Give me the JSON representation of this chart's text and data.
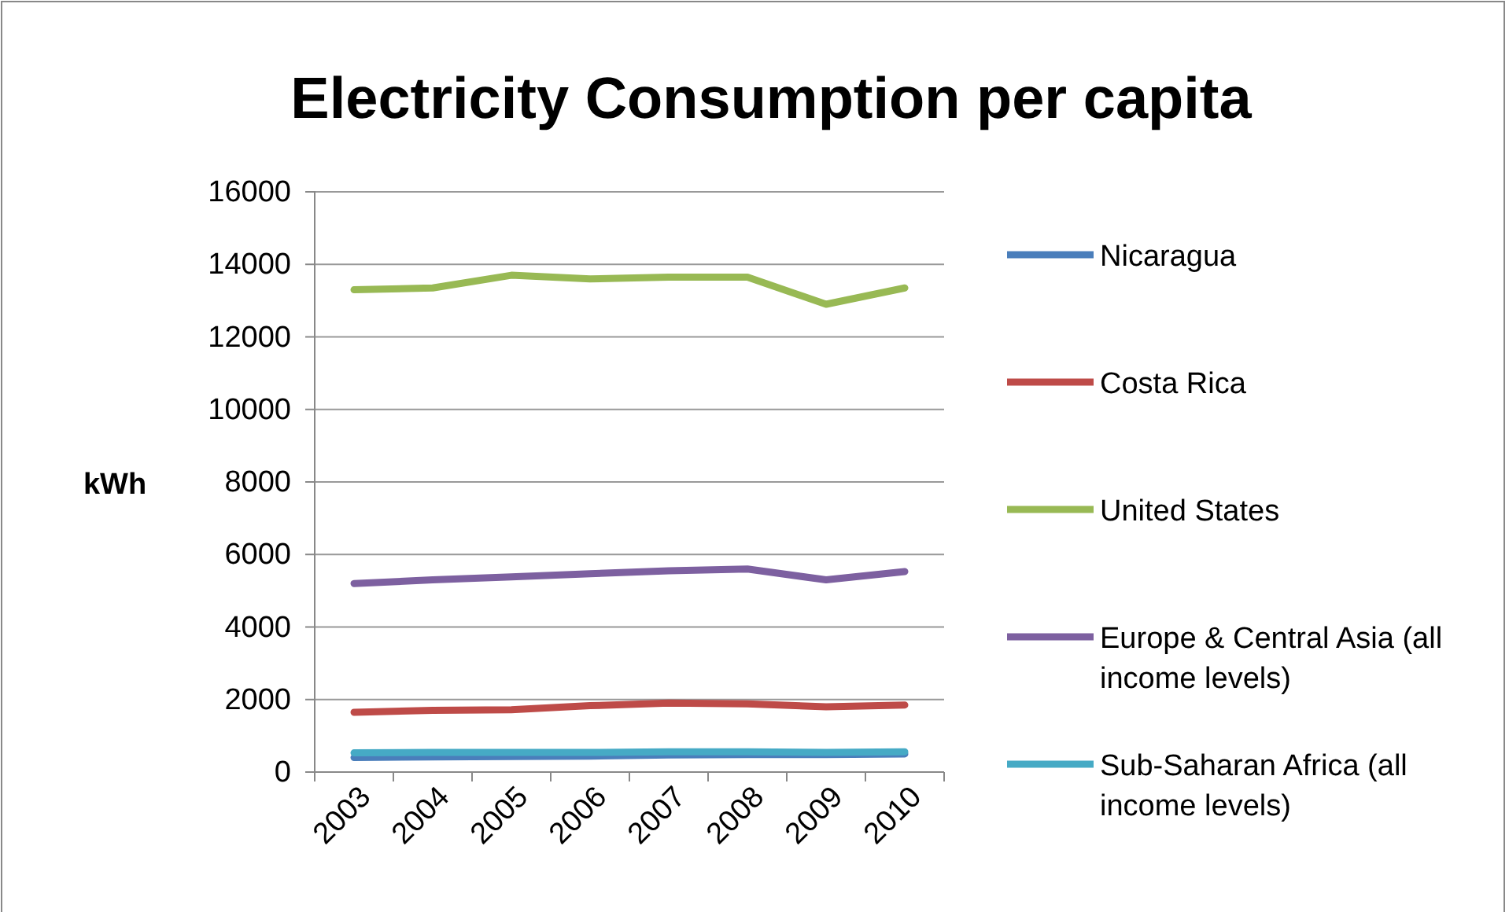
{
  "chart_data": {
    "type": "line",
    "title": "Electricity Consumption per capita",
    "ylabel": "kWh",
    "categories": [
      "2003",
      "2004",
      "2005",
      "2006",
      "2007",
      "2008",
      "2009",
      "2010"
    ],
    "ylim": [
      0,
      16000
    ],
    "yticks": [
      0,
      2000,
      4000,
      6000,
      8000,
      10000,
      12000,
      14000,
      16000
    ],
    "grid": "y",
    "legend": "right",
    "marker": "none",
    "series": [
      {
        "name": "Nicaragua",
        "color": "#4a7ebb",
        "values": [
          400,
          420,
          430,
          440,
          470,
          480,
          480,
          500
        ]
      },
      {
        "name": "Costa Rica",
        "color": "#be4b48",
        "values": [
          1650,
          1700,
          1720,
          1830,
          1900,
          1880,
          1800,
          1850
        ]
      },
      {
        "name": "United States",
        "color": "#98b954",
        "values": [
          13300,
          13350,
          13700,
          13600,
          13650,
          13650,
          12900,
          13350
        ]
      },
      {
        "name": "Europe & Central Asia (all income levels)",
        "color": "#7d60a0",
        "values": [
          5200,
          5300,
          5380,
          5470,
          5550,
          5600,
          5300,
          5530
        ]
      },
      {
        "name": "Sub-Saharan Africa (all income levels)",
        "color": "#46aac5",
        "values": [
          530,
          540,
          540,
          540,
          560,
          560,
          540,
          560
        ]
      }
    ]
  }
}
